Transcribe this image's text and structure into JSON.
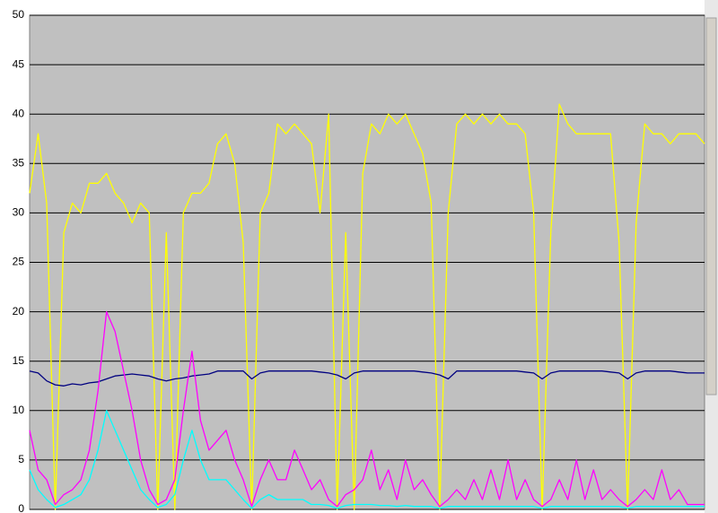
{
  "chart_data": {
    "type": "line",
    "ylim": [
      0,
      50
    ],
    "yticks": [
      0,
      5,
      10,
      15,
      20,
      25,
      30,
      35,
      40,
      45,
      50
    ],
    "grid": true,
    "plot_background": "#c0c0c0",
    "series": [
      {
        "color": "#ffff00",
        "values": [
          32,
          38,
          31,
          0,
          28,
          31,
          30,
          33,
          33,
          34,
          32,
          31,
          29,
          31,
          30,
          0,
          28,
          0,
          30,
          32,
          32,
          33,
          37,
          38,
          35,
          27,
          0,
          30,
          32,
          39,
          38,
          39,
          38,
          37,
          30,
          40,
          0,
          28,
          0,
          34,
          39,
          38,
          40,
          39,
          40,
          38,
          36,
          31,
          0,
          30,
          39,
          40,
          39,
          40,
          39,
          40,
          39,
          39,
          38,
          30,
          0,
          28,
          41,
          39,
          38,
          38,
          38,
          38,
          38,
          27,
          0,
          29,
          39,
          38,
          38,
          37,
          38,
          38,
          38,
          37
        ]
      },
      {
        "color": "#000080",
        "values": [
          14,
          13.8,
          13,
          12.6,
          12.5,
          12.7,
          12.6,
          12.8,
          12.9,
          13.2,
          13.5,
          13.6,
          13.7,
          13.6,
          13.5,
          13.2,
          13,
          13.2,
          13.3,
          13.5,
          13.6,
          13.7,
          14,
          14,
          14,
          14,
          13.2,
          13.8,
          14,
          14,
          14,
          14,
          14,
          14,
          13.9,
          13.8,
          13.6,
          13.2,
          13.8,
          14,
          14,
          14,
          14,
          14,
          14,
          14,
          13.9,
          13.8,
          13.6,
          13.2,
          14,
          14,
          14,
          14,
          14,
          14,
          14,
          14,
          13.9,
          13.8,
          13.2,
          13.8,
          14,
          14,
          14,
          14,
          14,
          14,
          13.9,
          13.8,
          13.2,
          13.8,
          14,
          14,
          14,
          14,
          13.9,
          13.8,
          13.8,
          13.8
        ]
      },
      {
        "color": "#ff00ff",
        "values": [
          8,
          4,
          3,
          0.5,
          1.5,
          2,
          3,
          6,
          12,
          20,
          18,
          14,
          10,
          5,
          2,
          0.5,
          1,
          3,
          10,
          16,
          9,
          6,
          7,
          8,
          5,
          3,
          0.3,
          3,
          5,
          3,
          3,
          6,
          4,
          2,
          3,
          1,
          0.3,
          1.5,
          2,
          3,
          6,
          2,
          4,
          1,
          5,
          2,
          3,
          1.5,
          0.3,
          1,
          2,
          1,
          3,
          1,
          4,
          1,
          5,
          1,
          3,
          1,
          0.3,
          1,
          3,
          1,
          5,
          1,
          4,
          1,
          2,
          1,
          0.3,
          1,
          2,
          1,
          4,
          1,
          2,
          0.5,
          0.5,
          0.5
        ]
      },
      {
        "color": "#00ffff",
        "values": [
          4,
          2,
          1,
          0.2,
          0.5,
          1,
          1.5,
          3,
          6,
          10,
          8,
          6,
          4,
          2,
          1,
          0.2,
          0.5,
          1.5,
          5,
          8,
          5,
          3,
          3,
          3,
          2,
          1,
          0.1,
          1,
          1.5,
          1,
          1,
          1,
          1,
          0.5,
          0.5,
          0.4,
          0.1,
          0.4,
          0.5,
          0.5,
          0.5,
          0.4,
          0.4,
          0.3,
          0.4,
          0.3,
          0.3,
          0.3,
          0.1,
          0.3,
          0.3,
          0.3,
          0.3,
          0.3,
          0.3,
          0.3,
          0.3,
          0.3,
          0.3,
          0.3,
          0.1,
          0.3,
          0.3,
          0.3,
          0.3,
          0.3,
          0.3,
          0.3,
          0.3,
          0.3,
          0.1,
          0.3,
          0.3,
          0.3,
          0.3,
          0.3,
          0.3,
          0.3,
          0.3,
          0.3
        ]
      }
    ]
  }
}
